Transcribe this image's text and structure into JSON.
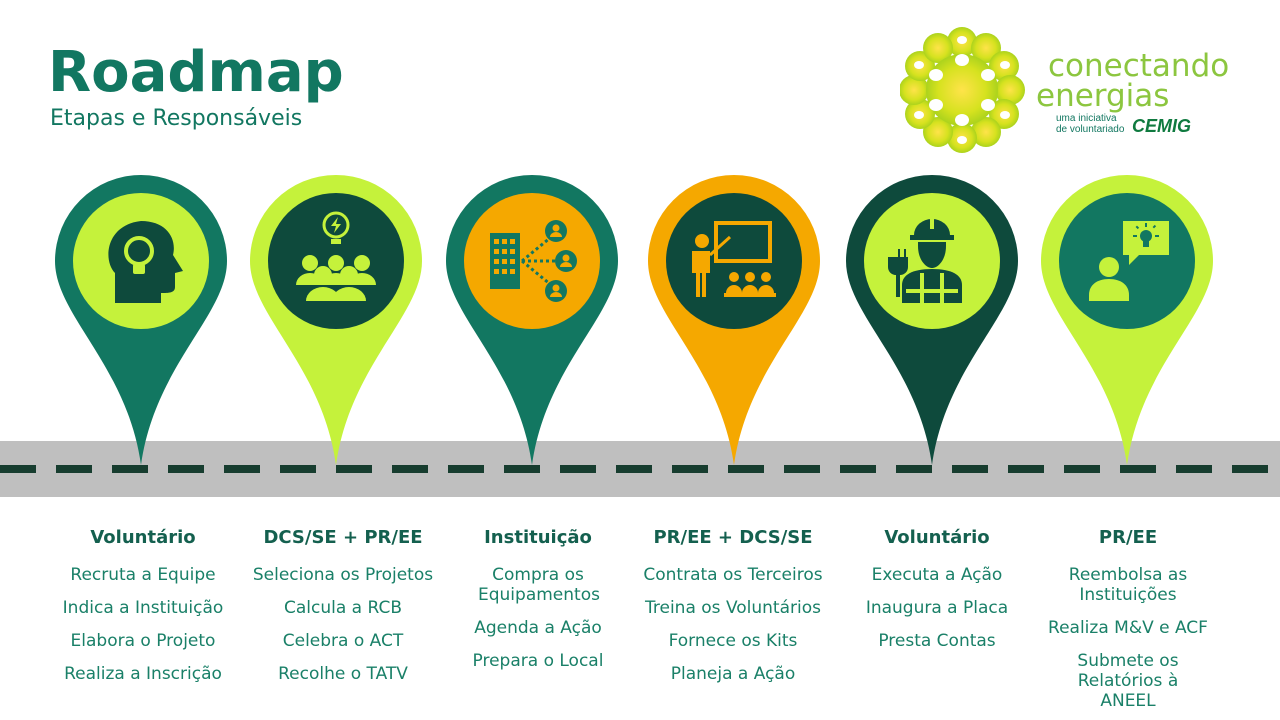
{
  "header": {
    "title": "Roadmap",
    "subtitle": "Etapas e Responsáveis"
  },
  "logo": {
    "line1": "conectando",
    "line2": "energias",
    "tag1": "uma iniciativa",
    "tag2": "de voluntariado",
    "brand": "CEMIG"
  },
  "colors": {
    "teal": "#127761",
    "dark_green": "#0e4a3c",
    "lime": "#c5f23b",
    "orange": "#f5a800",
    "road": "#bfbfbf",
    "dash": "#173d2f"
  },
  "stages": [
    {
      "icon": "head-lightbulb-icon",
      "title": "Voluntário",
      "items": [
        "Recruta a Equipe",
        "Indica a Instituição",
        "Elabora o Projeto",
        "Realiza a Inscrição"
      ]
    },
    {
      "icon": "team-idea-icon",
      "title": "DCS/SE + PR/EE",
      "items": [
        "Seleciona os Projetos",
        "Calcula a RCB",
        "Celebra o ACT",
        "Recolhe o TATV"
      ]
    },
    {
      "icon": "building-network-icon",
      "title": "Instituição",
      "items": [
        "Compra os Equipamentos",
        "Agenda a Ação",
        "Prepara o Local"
      ]
    },
    {
      "icon": "presentation-training-icon",
      "title": "PR/EE + DCS/SE",
      "items": [
        "Contrata os Terceiros",
        "Treina os Voluntários",
        "Fornece os Kits",
        "Planeja a Ação"
      ]
    },
    {
      "icon": "electrician-worker-icon",
      "title": "Voluntário",
      "items": [
        "Executa a Ação",
        "Inaugura a Placa",
        "Presta  Contas"
      ]
    },
    {
      "icon": "person-idea-bubble-icon",
      "title": "PR/EE",
      "items": [
        "Reembolsa as Instituições",
        "Realiza M&V e ACF",
        "Submete os Relatórios à ANEEL"
      ]
    }
  ]
}
